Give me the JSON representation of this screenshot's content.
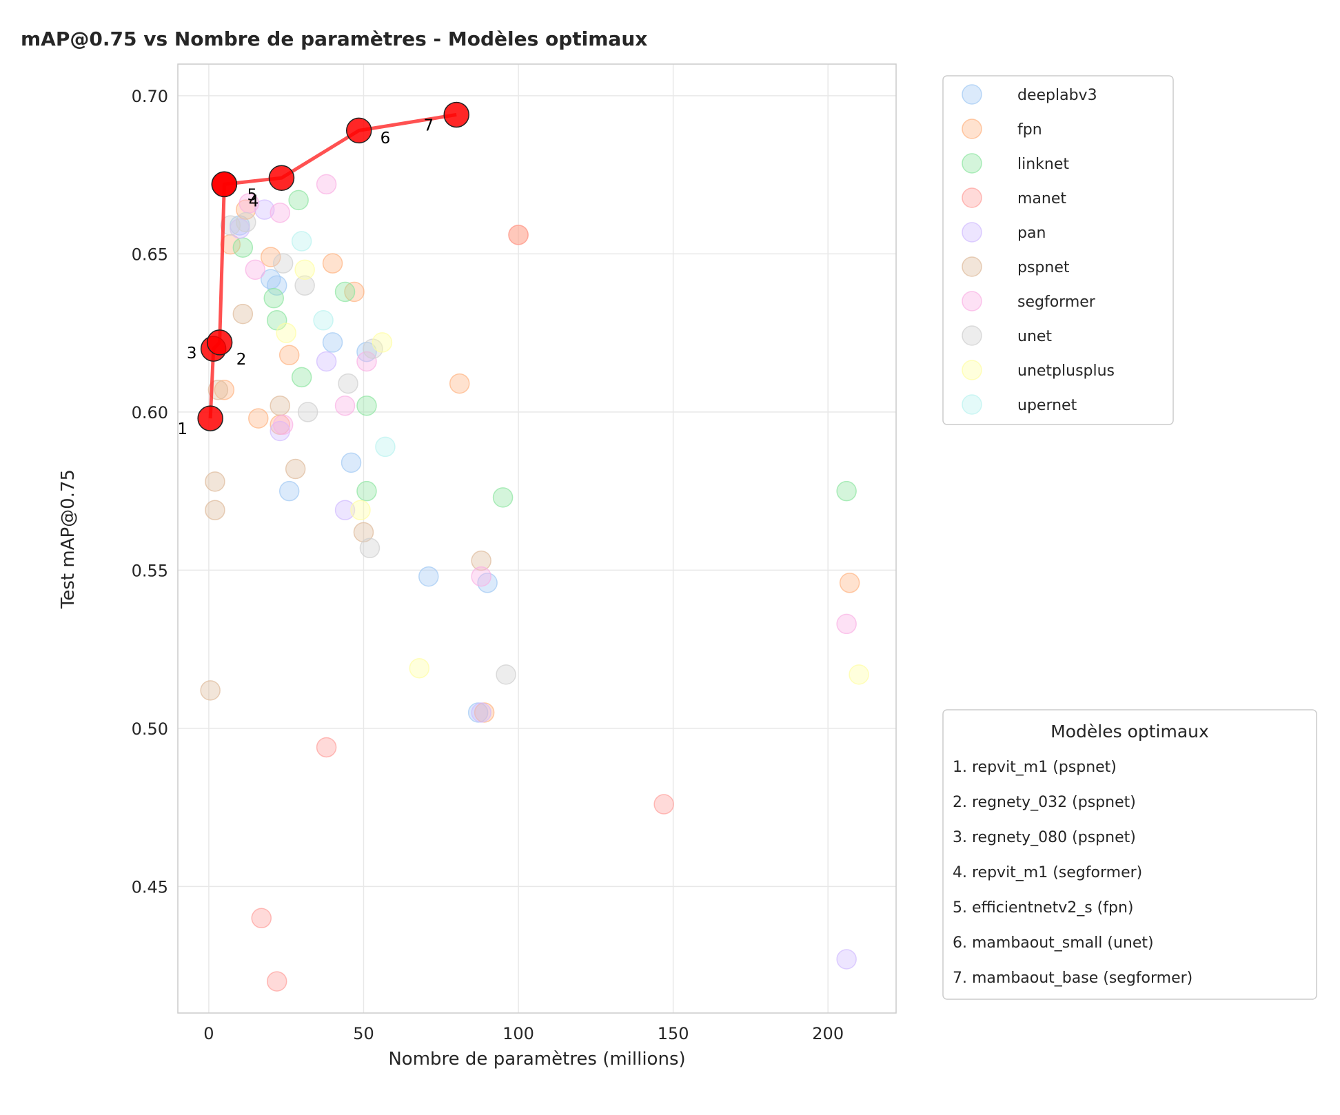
{
  "chart_data": {
    "type": "scatter",
    "title": "mAP@0.75 vs Nombre de paramètres - Modèles optimaux",
    "xlabel": "Nombre de paramètres (millions)",
    "ylabel": "Test mAP@0.75",
    "xlim": [
      -10,
      222
    ],
    "ylim": [
      0.41,
      0.71
    ],
    "xticks": [
      0,
      50,
      100,
      150,
      200
    ],
    "yticks": [
      0.45,
      0.5,
      0.55,
      0.6,
      0.65,
      0.7
    ],
    "xtick_labels": [
      "0",
      "50",
      "100",
      "150",
      "200"
    ],
    "ytick_labels": [
      "0.45",
      "0.50",
      "0.55",
      "0.60",
      "0.65",
      "0.70"
    ],
    "grid": true,
    "legend_position": "outside-top-right",
    "series": [
      {
        "name": "deeplabv3",
        "color": "#a1c9f4",
        "points": [
          [
            10,
            0.659
          ],
          [
            20,
            0.642
          ],
          [
            22,
            0.64
          ],
          [
            26,
            0.575
          ],
          [
            40,
            0.622
          ],
          [
            46,
            0.584
          ],
          [
            51,
            0.619
          ],
          [
            71,
            0.548
          ],
          [
            90,
            0.546
          ],
          [
            87,
            0.505
          ]
        ]
      },
      {
        "name": "fpn",
        "color": "#ffb482",
        "points": [
          [
            5,
            0.607
          ],
          [
            7,
            0.653
          ],
          [
            12,
            0.664
          ],
          [
            16,
            0.598
          ],
          [
            20,
            0.649
          ],
          [
            23,
            0.596
          ],
          [
            26,
            0.618
          ],
          [
            40,
            0.647
          ],
          [
            47,
            0.638
          ],
          [
            81,
            0.609
          ],
          [
            100,
            0.656
          ],
          [
            89,
            0.505
          ],
          [
            207,
            0.546
          ]
        ]
      },
      {
        "name": "linknet",
        "color": "#8de5a1",
        "points": [
          [
            11,
            0.652
          ],
          [
            21,
            0.636
          ],
          [
            22,
            0.629
          ],
          [
            29,
            0.667
          ],
          [
            30,
            0.611
          ],
          [
            44,
            0.638
          ],
          [
            51,
            0.602
          ],
          [
            51,
            0.575
          ],
          [
            95,
            0.573
          ],
          [
            206,
            0.575
          ]
        ]
      },
      {
        "name": "manet",
        "color": "#ff9f9b",
        "points": [
          [
            100,
            0.656
          ],
          [
            38,
            0.494
          ],
          [
            147,
            0.476
          ],
          [
            17,
            0.44
          ],
          [
            22,
            0.42
          ]
        ]
      },
      {
        "name": "pan",
        "color": "#d0bbff",
        "points": [
          [
            10,
            0.658
          ],
          [
            18,
            0.664
          ],
          [
            23,
            0.594
          ],
          [
            38,
            0.616
          ],
          [
            44,
            0.569
          ],
          [
            88,
            0.505
          ],
          [
            206,
            0.427
          ]
        ]
      },
      {
        "name": "pspnet",
        "color": "#debb9b",
        "points": [
          [
            3,
            0.607
          ],
          [
            11,
            0.631
          ],
          [
            23,
            0.602
          ],
          [
            28,
            0.582
          ],
          [
            2,
            0.578
          ],
          [
            2,
            0.569
          ],
          [
            0.5,
            0.512
          ],
          [
            50,
            0.562
          ],
          [
            88,
            0.553
          ]
        ]
      },
      {
        "name": "segformer",
        "color": "#fab0e4",
        "points": [
          [
            13,
            0.666
          ],
          [
            15,
            0.645
          ],
          [
            23,
            0.663
          ],
          [
            38,
            0.672
          ],
          [
            44,
            0.602
          ],
          [
            51,
            0.616
          ],
          [
            24,
            0.596
          ],
          [
            88,
            0.548
          ],
          [
            206,
            0.533
          ]
        ]
      },
      {
        "name": "unet",
        "color": "#cfcfcf",
        "points": [
          [
            7,
            0.659
          ],
          [
            12,
            0.66
          ],
          [
            24,
            0.647
          ],
          [
            31,
            0.64
          ],
          [
            32,
            0.6
          ],
          [
            45,
            0.609
          ],
          [
            53,
            0.62
          ],
          [
            52,
            0.557
          ],
          [
            96,
            0.517
          ]
        ]
      },
      {
        "name": "unetplusplus",
        "color": "#fffea3",
        "points": [
          [
            25,
            0.625
          ],
          [
            31,
            0.645
          ],
          [
            56,
            0.622
          ],
          [
            49,
            0.569
          ],
          [
            68,
            0.519
          ],
          [
            210,
            0.517
          ]
        ]
      },
      {
        "name": "upernet",
        "color": "#b9f2f0",
        "points": [
          [
            30,
            0.654
          ],
          [
            37,
            0.629
          ],
          [
            57,
            0.589
          ]
        ]
      }
    ],
    "optimal": {
      "color": "#ff0000",
      "line_color": "#ff3333",
      "points": [
        {
          "n": "1",
          "x": 0.5,
          "y": 0.598
        },
        {
          "n": "3",
          "x": 1.5,
          "y": 0.62
        },
        {
          "n": "2",
          "x": 3.5,
          "y": 0.622
        },
        {
          "n": "5",
          "x": 5,
          "y": 0.672
        },
        {
          "n": "4",
          "x": 5,
          "y": 0.672
        },
        {
          "n": "",
          "x": 23.5,
          "y": 0.674
        },
        {
          "n": "6",
          "x": 48.5,
          "y": 0.689
        },
        {
          "n": "7",
          "x": 80,
          "y": 0.694
        }
      ],
      "label_offsets": [
        {
          "n": "1",
          "x": -8.5,
          "y": 0.593
        },
        {
          "n": "3",
          "x": -5.5,
          "y": 0.617
        },
        {
          "n": "2",
          "x": 10.5,
          "y": 0.615
        },
        {
          "n": "5",
          "x": 14,
          "y": 0.667
        },
        {
          "n": "4",
          "x": 14.5,
          "y": 0.665
        },
        {
          "n": "6",
          "x": 57,
          "y": 0.685
        },
        {
          "n": "7",
          "x": 71,
          "y": 0.689
        }
      ]
    },
    "optimal_legend": {
      "title": "Modèles optimaux",
      "entries": [
        "1. repvit_m1 (pspnet)",
        "2. regnety_032 (pspnet)",
        "3. regnety_080 (pspnet)",
        "4. repvit_m1 (segformer)",
        "5. efficientnetv2_s (fpn)",
        "6. mambaout_small (unet)",
        "7. mambaout_base (segformer)"
      ]
    }
  }
}
